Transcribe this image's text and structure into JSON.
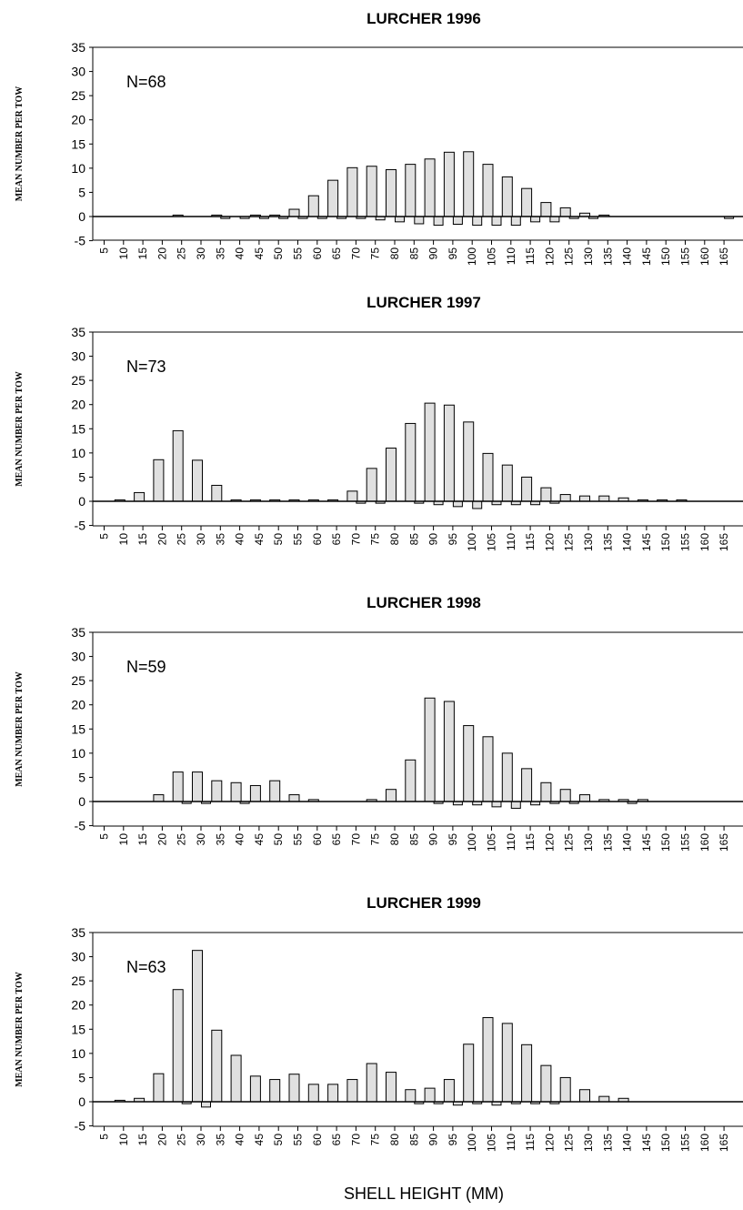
{
  "figure": {
    "ylabel": "MEAN NUMBER PER TOW",
    "xlabel": "SHELL HEIGHT (MM)"
  },
  "chart_data": [
    {
      "type": "bar",
      "title": "LURCHER 1996",
      "annotation": "N=68",
      "ylabel": "MEAN NUMBER PER TOW",
      "xlabel": "",
      "ylim": [
        -5,
        35
      ],
      "yticks": [
        -5,
        0,
        5,
        10,
        15,
        20,
        25,
        30,
        35
      ],
      "categories": [
        "5",
        "10",
        "15",
        "20",
        "25",
        "30",
        "35",
        "40",
        "45",
        "50",
        "55",
        "60",
        "65",
        "70",
        "75",
        "80",
        "85",
        "90",
        "95",
        "100",
        "105",
        "110",
        "115",
        "120",
        "125",
        "130",
        "135",
        "140",
        "145",
        "150",
        "155",
        "160",
        "165"
      ],
      "series": [
        {
          "values": [
            0,
            0,
            0,
            0,
            0.3,
            0,
            0.3,
            0,
            0.3,
            0.3,
            1.5,
            4.3,
            7.5,
            10.1,
            10.4,
            9.7,
            10.8,
            11.9,
            13.3,
            13.4,
            10.8,
            8.2,
            5.8,
            2.9,
            1.8,
            0.7,
            0.3,
            0,
            0,
            0,
            0,
            0,
            0
          ]
        },
        {
          "values": [
            0,
            0,
            0,
            0,
            0,
            0,
            -0.4,
            -0.4,
            -0.4,
            -0.4,
            -0.4,
            -0.4,
            -0.4,
            -0.4,
            -0.7,
            -1.1,
            -1.5,
            -1.8,
            -1.6,
            -1.8,
            -1.8,
            -1.8,
            -1.1,
            -1.1,
            -0.4,
            -0.4,
            0,
            0,
            0,
            0,
            0,
            0,
            -0.4
          ]
        }
      ]
    },
    {
      "type": "bar",
      "title": "LURCHER 1997",
      "annotation": "N=73",
      "ylabel": "MEAN NUMBER PER TOW",
      "xlabel": "",
      "ylim": [
        -5,
        35
      ],
      "yticks": [
        -5,
        0,
        5,
        10,
        15,
        20,
        25,
        30,
        35
      ],
      "categories": [
        "5",
        "10",
        "15",
        "20",
        "25",
        "30",
        "35",
        "40",
        "45",
        "50",
        "55",
        "60",
        "65",
        "70",
        "75",
        "80",
        "85",
        "90",
        "95",
        "100",
        "105",
        "110",
        "115",
        "120",
        "125",
        "130",
        "135",
        "140",
        "145",
        "150",
        "155",
        "160",
        "165"
      ],
      "series": [
        {
          "values": [
            0,
            0.3,
            1.8,
            8.6,
            14.6,
            8.5,
            3.3,
            0.3,
            0.3,
            0.3,
            0.3,
            0.3,
            0.3,
            2.1,
            6.8,
            11.0,
            16.1,
            20.3,
            19.9,
            16.4,
            9.9,
            7.5,
            5.0,
            2.8,
            1.4,
            1.1,
            1.1,
            0.7,
            0.3,
            0.3,
            0.3,
            0,
            0
          ]
        },
        {
          "values": [
            0,
            0,
            0,
            0,
            0,
            0,
            0,
            0,
            0,
            0,
            0,
            0,
            0,
            -0.4,
            -0.4,
            0,
            -0.4,
            -0.7,
            -1.1,
            -1.5,
            -0.7,
            -0.7,
            -0.7,
            -0.4,
            0,
            0,
            0,
            0,
            0,
            0,
            0,
            0,
            0
          ]
        }
      ]
    },
    {
      "type": "bar",
      "title": "LURCHER 1998",
      "annotation": "N=59",
      "ylabel": "MEAN NUMBER PER TOW",
      "xlabel": "",
      "ylim": [
        -5,
        35
      ],
      "yticks": [
        -5,
        0,
        5,
        10,
        15,
        20,
        25,
        30,
        35
      ],
      "categories": [
        "5",
        "10",
        "15",
        "20",
        "25",
        "30",
        "35",
        "40",
        "45",
        "50",
        "55",
        "60",
        "65",
        "70",
        "75",
        "80",
        "85",
        "90",
        "95",
        "100",
        "105",
        "110",
        "115",
        "120",
        "125",
        "130",
        "135",
        "140",
        "145",
        "150",
        "155",
        "160",
        "165"
      ],
      "series": [
        {
          "values": [
            0,
            0,
            0,
            1.4,
            6.1,
            6.1,
            4.3,
            3.9,
            3.3,
            4.3,
            1.4,
            0.4,
            0,
            0,
            0.4,
            2.5,
            8.6,
            21.4,
            20.7,
            15.7,
            13.4,
            10.0,
            6.8,
            3.9,
            2.5,
            1.4,
            0.4,
            0.4,
            0.4,
            0,
            0,
            0,
            0
          ]
        },
        {
          "values": [
            0,
            0,
            0,
            0,
            -0.4,
            -0.4,
            0,
            -0.4,
            0,
            0,
            0,
            0,
            0,
            0,
            0,
            0,
            0,
            -0.4,
            -0.7,
            -0.7,
            -1.1,
            -1.4,
            -0.7,
            -0.4,
            -0.4,
            0,
            0,
            -0.4,
            0,
            0,
            0,
            0,
            0
          ]
        }
      ]
    },
    {
      "type": "bar",
      "title": "LURCHER 1999",
      "annotation": "N=63",
      "ylabel": "MEAN NUMBER PER TOW",
      "xlabel": "SHELL HEIGHT (MM)",
      "ylim": [
        -5,
        35
      ],
      "yticks": [
        -5,
        0,
        5,
        10,
        15,
        20,
        25,
        30,
        35
      ],
      "categories": [
        "5",
        "10",
        "15",
        "20",
        "25",
        "30",
        "35",
        "40",
        "45",
        "50",
        "55",
        "60",
        "65",
        "70",
        "75",
        "80",
        "85",
        "90",
        "95",
        "100",
        "105",
        "110",
        "115",
        "120",
        "125",
        "130",
        "135",
        "140",
        "145",
        "150",
        "155",
        "160",
        "165"
      ],
      "series": [
        {
          "values": [
            0,
            0.3,
            0.7,
            5.8,
            23.2,
            31.3,
            14.8,
            9.6,
            5.3,
            4.6,
            5.7,
            3.6,
            3.6,
            4.6,
            7.9,
            6.1,
            2.5,
            2.8,
            4.6,
            11.9,
            17.4,
            16.2,
            11.8,
            7.5,
            5.0,
            2.5,
            1.1,
            0.7,
            0,
            0,
            0,
            0,
            0
          ]
        },
        {
          "values": [
            0,
            0,
            0,
            0,
            -0.4,
            -1.1,
            0,
            0,
            0,
            0,
            0,
            0,
            0,
            0,
            0,
            0,
            -0.4,
            -0.4,
            -0.7,
            -0.4,
            -0.7,
            -0.4,
            -0.4,
            -0.4,
            0,
            0,
            0,
            0,
            0,
            0,
            0,
            0,
            0
          ]
        }
      ]
    }
  ]
}
